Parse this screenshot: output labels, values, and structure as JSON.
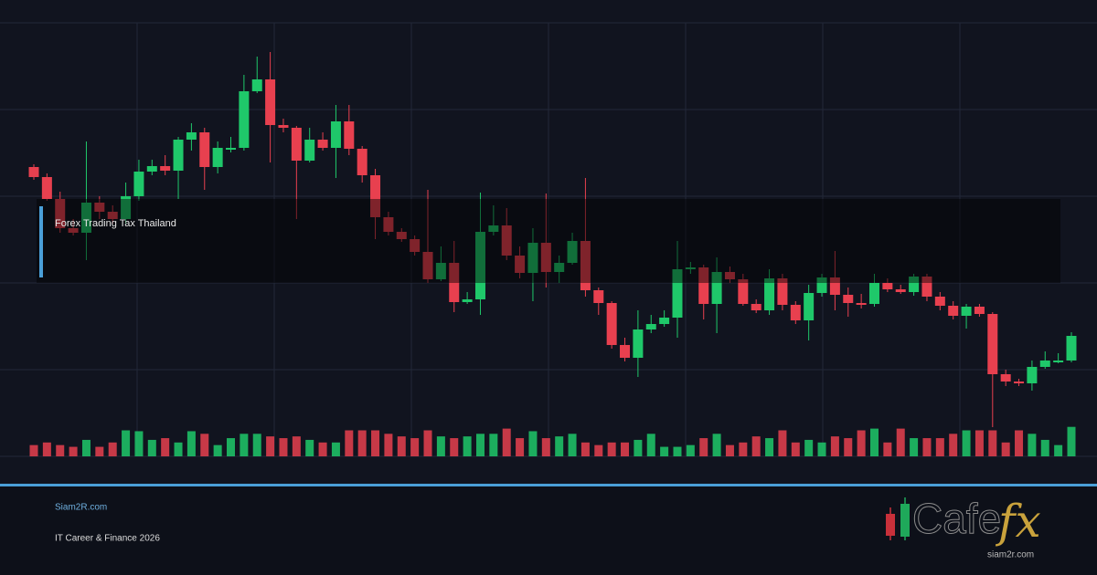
{
  "chart_data": {
    "type": "candlestick",
    "overlay_label": "Forex Trading Tax Thailand",
    "open": [
      317,
      306,
      282,
      250,
      245,
      278,
      268,
      260,
      285,
      312,
      318,
      313,
      347,
      355,
      317,
      338,
      338,
      400,
      413,
      363,
      360,
      324,
      347,
      338,
      367,
      337,
      308,
      262,
      246,
      238,
      224,
      194,
      212,
      169,
      172,
      246,
      253,
      220,
      201,
      234,
      202,
      212,
      236,
      182,
      168,
      122,
      108,
      139,
      145,
      152,
      205,
      207,
      167,
      202,
      194,
      167,
      160,
      195,
      166,
      149,
      179,
      196,
      177,
      168,
      167,
      190,
      183,
      180,
      197,
      175,
      165,
      154,
      164,
      156,
      90,
      82,
      80,
      98,
      105,
      105
    ],
    "high": [
      320,
      310,
      290,
      260,
      345,
      285,
      275,
      300,
      325,
      325,
      330,
      350,
      365,
      360,
      345,
      350,
      418,
      438,
      443,
      370,
      362,
      360,
      355,
      385,
      385,
      340,
      315,
      268,
      250,
      242,
      292,
      230,
      236,
      180,
      289,
      275,
      272,
      230,
      250,
      288,
      220,
      245,
      305,
      185,
      170,
      130,
      160,
      155,
      160,
      236,
      213,
      210,
      218,
      208,
      200,
      172,
      205,
      200,
      170,
      188,
      200,
      225,
      185,
      178,
      200,
      195,
      188,
      200,
      200,
      180,
      170,
      167,
      167,
      158,
      95,
      85,
      105,
      115,
      113,
      136
    ],
    "low": [
      303,
      280,
      245,
      242,
      215,
      260,
      255,
      255,
      280,
      308,
      308,
      282,
      335,
      292,
      310,
      333,
      335,
      398,
      322,
      355,
      260,
      322,
      335,
      305,
      330,
      300,
      238,
      242,
      235,
      220,
      190,
      192,
      158,
      167,
      155,
      242,
      215,
      195,
      170,
      185,
      190,
      210,
      175,
      155,
      118,
      104,
      87,
      135,
      142,
      130,
      200,
      150,
      135,
      190,
      165,
      157,
      155,
      160,
      145,
      127,
      175,
      160,
      153,
      162,
      164,
      180,
      178,
      176,
      170,
      160,
      150,
      140,
      153,
      32,
      77,
      77,
      72,
      96,
      102,
      103
    ],
    "close": [
      306,
      282,
      250,
      245,
      278,
      268,
      260,
      285,
      312,
      318,
      313,
      347,
      355,
      317,
      338,
      338,
      400,
      413,
      363,
      360,
      324,
      347,
      338,
      367,
      337,
      308,
      262,
      246,
      238,
      224,
      194,
      212,
      169,
      172,
      246,
      253,
      220,
      201,
      234,
      202,
      212,
      236,
      182,
      168,
      122,
      108,
      139,
      145,
      152,
      205,
      207,
      167,
      202,
      194,
      167,
      160,
      195,
      166,
      149,
      179,
      196,
      177,
      168,
      167,
      190,
      183,
      180,
      197,
      175,
      165,
      154,
      164,
      156,
      90,
      82,
      80,
      98,
      105,
      105,
      132
    ],
    "volume": [
      13,
      16,
      13,
      11,
      19,
      11,
      16,
      30,
      29,
      19,
      21,
      16,
      29,
      26,
      13,
      21,
      26,
      26,
      23,
      21,
      23,
      19,
      16,
      16,
      30,
      30,
      30,
      26,
      23,
      21,
      30,
      23,
      21,
      23,
      26,
      26,
      32,
      21,
      29,
      21,
      23,
      26,
      16,
      13,
      16,
      16,
      19,
      26,
      11,
      11,
      13,
      21,
      26,
      13,
      16,
      23,
      21,
      30,
      16,
      19,
      16,
      23,
      21,
      30,
      32,
      16,
      32,
      21,
      21,
      21,
      26,
      30,
      30,
      30,
      16,
      30,
      26,
      19,
      13,
      34
    ],
    "up_color": "#1fc86a",
    "down_color": "#e8404f",
    "ylim": [
      0,
      500
    ],
    "yticks": [
      0,
      95,
      190,
      285,
      380,
      475
    ],
    "volume_lim": [
      0,
      100
    ],
    "grid": true
  },
  "footer": {
    "site": "Siam2R.com",
    "tagline": "IT Career & Finance 2026"
  },
  "logo": {
    "brand": "Cafe",
    "accent": "fx",
    "domain": "siam2r.com"
  }
}
